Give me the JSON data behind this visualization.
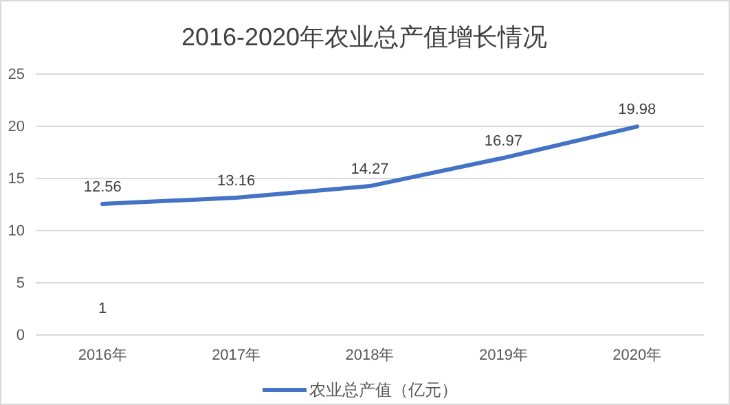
{
  "chart_data": {
    "type": "line",
    "title": "2016-2020年农业总产值增长情况",
    "categories": [
      "2016年",
      "2017年",
      "2018年",
      "2019年",
      "2020年"
    ],
    "series": [
      {
        "name": "农业总产值（亿元）",
        "color": "#4472c4",
        "values": [
          12.56,
          13.16,
          14.27,
          16.97,
          19.98
        ]
      }
    ],
    "ylim": [
      0,
      25
    ],
    "yticks": [
      0,
      5,
      10,
      15,
      20,
      25
    ],
    "grid": "y",
    "legend": "bottom",
    "data_labels": true,
    "marker": "none",
    "annotations": [
      "1"
    ]
  }
}
